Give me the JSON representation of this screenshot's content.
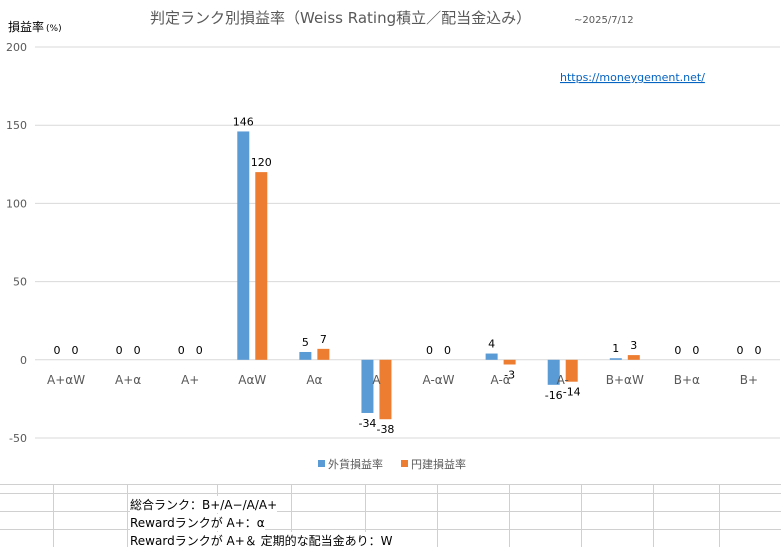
{
  "title": {
    "main": "判定ランク別損益率（Weiss Rating積立／配当金込み）",
    "sub": "~2025/7/12"
  },
  "ylabel": {
    "text": "損益率",
    "unit": "(%)"
  },
  "url": "https://moneygement.net/",
  "colors": {
    "usd": "#5b9bd5",
    "jpy": "#ed7d31"
  },
  "chart_data": {
    "type": "bar",
    "categories": [
      "A+αW",
      "A+α",
      "A+",
      "AαW",
      "Aα",
      "A",
      "A-αW",
      "A-α",
      "A-",
      "B+αW",
      "B+α",
      "B+"
    ],
    "series": [
      {
        "name": "外貨損益率",
        "values": [
          0,
          0,
          0,
          146,
          5,
          -34,
          0,
          4,
          -16,
          1,
          0,
          0
        ]
      },
      {
        "name": "円建損益率",
        "values": [
          0,
          0,
          0,
          120,
          7,
          -38,
          0,
          -3,
          -14,
          3,
          0,
          0
        ]
      }
    ],
    "ylim": [
      -50,
      200
    ],
    "yticks": [
      -50,
      0,
      50,
      100,
      150,
      200
    ],
    "legend": "bottom",
    "grid": true
  },
  "notes": [
    "総合ランク：B+/A−/A/A+",
    "Rewardランクが A+：α",
    "Rewardランクが A+＆ 定期的な配当金あり：W"
  ]
}
